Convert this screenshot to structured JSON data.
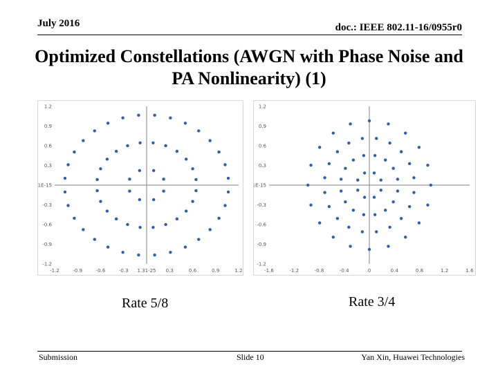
{
  "header": {
    "date": "July 2016",
    "doc": "doc.: IEEE 802.11-16/0955r0"
  },
  "title": "Optimized Constellations (AWGN with Phase Noise and PA Nonlinearity) (1)",
  "colors": {
    "point": "#2d5faa",
    "axis": "#808080",
    "frame": "#d6d6d6"
  },
  "chart_data": [
    {
      "type": "scatter",
      "caption": "Rate 5/8",
      "xlim": [
        -1.2,
        1.2
      ],
      "ylim": [
        -1.2,
        1.2
      ],
      "xticks": [
        "-1.2",
        "-0.9",
        "-0.6",
        "-0.3",
        "1.31-25",
        "0.3",
        "0.6",
        "0.9",
        "1.2"
      ],
      "yticks": [
        "1.2",
        "0.9",
        "0.6",
        "0.3",
        "-1E-15",
        "-0.3",
        "-0.6",
        "-0.9",
        "-1.2"
      ],
      "rings": [
        {
          "count": 8,
          "radius": 0.24,
          "offset": 22.5
        },
        {
          "count": 24,
          "radius": 0.65,
          "offset": 7.5
        },
        {
          "count": 32,
          "radius": 1.07,
          "offset": 5.625
        }
      ]
    },
    {
      "type": "scatter",
      "caption": "Rate 3/4",
      "xlim": [
        -1.6,
        1.6
      ],
      "ylim": [
        -1.2,
        1.2
      ],
      "xticks": [
        "-1.6",
        "-1.2",
        "-0.8",
        "-0.4",
        "0",
        "0.4",
        "0.8",
        "1.2",
        "1.6"
      ],
      "yticks": [
        "1.2",
        "0.9",
        "0.6",
        "0.3",
        "-1E-15",
        "-0.3",
        "-0.6",
        "-0.9",
        "-1.2"
      ],
      "rings": [
        {
          "count": 8,
          "radius": 0.2,
          "offset": 22.5
        },
        {
          "count": 16,
          "radius": 0.46,
          "offset": 11.25
        },
        {
          "count": 20,
          "radius": 0.72,
          "offset": 9
        },
        {
          "count": 20,
          "radius": 0.98,
          "offset": 0
        }
      ]
    }
  ],
  "footer": {
    "left": "Submission",
    "center": "Slide 10",
    "right": "Yan Xin, Huawei Technologies"
  }
}
